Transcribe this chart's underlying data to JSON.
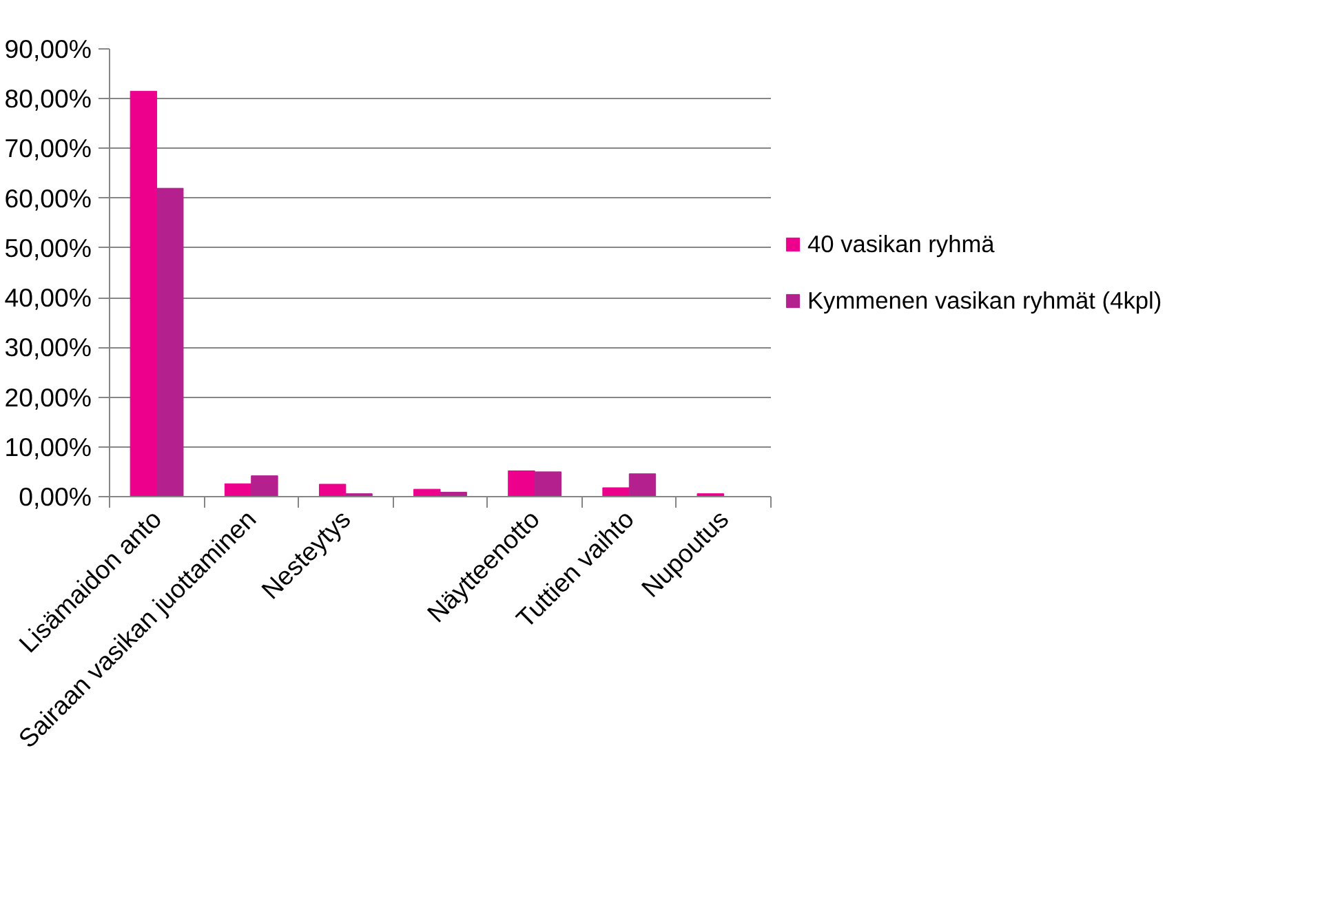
{
  "chart_data": {
    "type": "bar",
    "categories": [
      "Lisämaidon anto",
      "Sairaan vasikan juottaminen",
      "Nesteytys",
      null,
      "Näytteenotto",
      "Tuttien vaihto",
      "Nupoutus"
    ],
    "series": [
      {
        "name": "40 vasikan ryhmä",
        "color": "#ec008c",
        "values": [
          81.5,
          2.6,
          2.5,
          1.5,
          5.2,
          1.8,
          0.6
        ]
      },
      {
        "name": "Kymmenen vasikan ryhmät (4kpl)",
        "color": "#b5208f",
        "values": [
          62,
          4.2,
          0.6,
          0.9,
          5.0,
          4.6,
          0
        ]
      }
    ],
    "ylim": [
      0,
      90
    ],
    "yticks": [
      {
        "value": 0,
        "label": "0,00%"
      },
      {
        "value": 10,
        "label": "10,00%"
      },
      {
        "value": 20,
        "label": "20,00%"
      },
      {
        "value": 30,
        "label": "30,00%"
      },
      {
        "value": 40,
        "label": "40,00%"
      },
      {
        "value": 50,
        "label": "50,00%"
      },
      {
        "value": 60,
        "label": "60,00%"
      },
      {
        "value": 70,
        "label": "70,00%"
      },
      {
        "value": 80,
        "label": "80,00%"
      },
      {
        "value": 90,
        "label": "90,00%"
      }
    ],
    "grid": "y",
    "legend": "right"
  }
}
